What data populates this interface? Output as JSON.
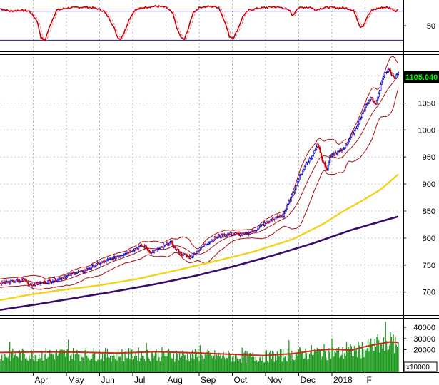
{
  "chart_data": {
    "type": "candlestick",
    "months": [
      "Apr",
      "May",
      "Jun",
      "Jul",
      "Aug",
      "Sep",
      "Oct",
      "Nov",
      "Dec",
      "2018",
      "F"
    ],
    "last_price_label": "1105.040",
    "volume_unit_label": "x10000",
    "colors": {
      "up_candle": "#0000cc",
      "down_candle": "#cc0000",
      "bollinger": "#aa1111",
      "ma_yellow": "#f2d21b",
      "ma_purple": "#3b0a6e",
      "volume": "#1f9a1f",
      "volume_ma": "#cc2a1a",
      "indicator_line": "#cc0000",
      "price_badge_bg": "#000000",
      "price_badge_text": "#00ff00"
    },
    "panels": [
      {
        "name": "indicator",
        "yticks": [
          50
        ],
        "ylim": [
          0,
          100
        ],
        "hlines": [
          80,
          20
        ],
        "keypoints": [
          [
            0,
            85
          ],
          [
            10,
            80
          ],
          [
            20,
            82
          ],
          [
            30,
            80
          ],
          [
            38,
            60
          ],
          [
            42,
            25
          ],
          [
            46,
            20
          ],
          [
            52,
            55
          ],
          [
            58,
            82
          ],
          [
            68,
            86
          ],
          [
            80,
            88
          ],
          [
            90,
            88
          ],
          [
            100,
            85
          ],
          [
            106,
            80
          ],
          [
            112,
            65
          ],
          [
            117,
            45
          ],
          [
            120,
            28
          ],
          [
            123,
            22
          ],
          [
            127,
            35
          ],
          [
            132,
            62
          ],
          [
            138,
            82
          ],
          [
            148,
            88
          ],
          [
            160,
            90
          ],
          [
            170,
            88
          ],
          [
            177,
            75
          ],
          [
            182,
            40
          ],
          [
            186,
            24
          ],
          [
            189,
            22
          ],
          [
            193,
            45
          ],
          [
            198,
            78
          ],
          [
            205,
            88
          ],
          [
            215,
            90
          ],
          [
            224,
            88
          ],
          [
            230,
            60
          ],
          [
            235,
            28
          ],
          [
            239,
            25
          ],
          [
            243,
            40
          ],
          [
            249,
            70
          ],
          [
            255,
            82
          ],
          [
            262,
            85
          ],
          [
            270,
            87
          ],
          [
            280,
            89
          ],
          [
            290,
            87
          ],
          [
            297,
            80
          ],
          [
            300,
            70
          ],
          [
            304,
            85
          ],
          [
            310,
            88
          ],
          [
            318,
            88
          ],
          [
            323,
            82
          ],
          [
            327,
            85
          ],
          [
            335,
            88
          ],
          [
            345,
            87
          ],
          [
            355,
            86
          ],
          [
            362,
            82
          ],
          [
            366,
            62
          ],
          [
            369,
            48
          ],
          [
            372,
            50
          ],
          [
            376,
            68
          ],
          [
            381,
            82
          ],
          [
            388,
            86
          ],
          [
            395,
            88
          ],
          [
            400,
            86
          ],
          [
            405,
            80
          ],
          [
            408,
            84
          ]
        ]
      },
      {
        "name": "price",
        "yticks": [
          700,
          750,
          800,
          850,
          900,
          950,
          1000,
          1050,
          1100
        ],
        "ylim": [
          660,
          1135
        ],
        "keypoints": [
          [
            0,
            718
          ],
          [
            20,
            720
          ],
          [
            25,
            724
          ],
          [
            30,
            714
          ],
          [
            40,
            716
          ],
          [
            50,
            720
          ],
          [
            60,
            724
          ],
          [
            70,
            730
          ],
          [
            75,
            735
          ],
          [
            85,
            738
          ],
          [
            95,
            748
          ],
          [
            105,
            755
          ],
          [
            115,
            762
          ],
          [
            125,
            770
          ],
          [
            135,
            778
          ],
          [
            145,
            786
          ],
          [
            150,
            782
          ],
          [
            155,
            772
          ],
          [
            160,
            778
          ],
          [
            165,
            782
          ],
          [
            175,
            792
          ],
          [
            180,
            780
          ],
          [
            185,
            772
          ],
          [
            190,
            768
          ],
          [
            195,
            764
          ],
          [
            200,
            772
          ],
          [
            210,
            788
          ],
          [
            220,
            800
          ],
          [
            230,
            806
          ],
          [
            240,
            808
          ],
          [
            250,
            806
          ],
          [
            260,
            814
          ],
          [
            270,
            825
          ],
          [
            280,
            835
          ],
          [
            290,
            842
          ],
          [
            295,
            862
          ],
          [
            300,
            882
          ],
          [
            305,
            905
          ],
          [
            310,
            925
          ],
          [
            315,
            942
          ],
          [
            320,
            952
          ],
          [
            325,
            975
          ],
          [
            328,
            960
          ],
          [
            330,
            945
          ],
          [
            335,
            925
          ],
          [
            338,
            950
          ],
          [
            342,
            955
          ],
          [
            350,
            962
          ],
          [
            355,
            975
          ],
          [
            360,
            990
          ],
          [
            365,
            1005
          ],
          [
            370,
            1025
          ],
          [
            375,
            1045
          ],
          [
            380,
            1062
          ],
          [
            385,
            1045
          ],
          [
            388,
            1070
          ],
          [
            390,
            1082
          ],
          [
            394,
            1105
          ],
          [
            398,
            1112
          ],
          [
            402,
            1100
          ],
          [
            405,
            1098
          ],
          [
            408,
            1105
          ]
        ],
        "series": [
          {
            "key": "ma_purple",
            "keypoints": [
              [
                0,
                667
              ],
              [
                40,
                678
              ],
              [
                80,
                690
              ],
              [
                120,
                702
              ],
              [
                160,
                715
              ],
              [
                200,
                730
              ],
              [
                240,
                748
              ],
              [
                280,
                768
              ],
              [
                320,
                790
              ],
              [
                360,
                815
              ],
              [
                408,
                840
              ]
            ]
          },
          {
            "key": "ma_yellow",
            "keypoints": [
              [
                0,
                685
              ],
              [
                30,
                695
              ],
              [
                60,
                703
              ],
              [
                100,
                712
              ],
              [
                140,
                724
              ],
              [
                180,
                740
              ],
              [
                220,
                757
              ],
              [
                260,
                775
              ],
              [
                300,
                798
              ],
              [
                330,
                825
              ],
              [
                350,
                848
              ],
              [
                370,
                868
              ],
              [
                390,
                890
              ],
              [
                408,
                918
              ]
            ]
          }
        ]
      },
      {
        "name": "volume",
        "yticks": [
          10000,
          20000,
          30000,
          40000
        ],
        "ylim": [
          0,
          47000
        ],
        "keypoints": [
          [
            0,
            16000
          ],
          [
            40,
            17000
          ],
          [
            80,
            17500
          ],
          [
            120,
            16500
          ],
          [
            160,
            17500
          ],
          [
            200,
            16000
          ],
          [
            240,
            15000
          ],
          [
            260,
            14500
          ],
          [
            280,
            15500
          ],
          [
            300,
            17000
          ],
          [
            320,
            19000
          ],
          [
            340,
            19500
          ],
          [
            350,
            18000
          ],
          [
            370,
            22000
          ],
          [
            390,
            25000
          ],
          [
            408,
            26000
          ]
        ],
        "spikes": [
          [
            395,
            45000
          ],
          [
            400,
            36000
          ],
          [
            405,
            32000
          ],
          [
            387,
            34000
          ],
          [
            340,
            30000
          ],
          [
            296,
            28500
          ],
          [
            150,
            26000
          ],
          [
            70,
            29000
          ],
          [
            10,
            27000
          ],
          [
            205,
            24000
          ],
          [
            248,
            22000
          ],
          [
            355,
            27000
          ],
          [
            380,
            30000
          ]
        ],
        "ma_keypoints": [
          [
            0,
            17500
          ],
          [
            40,
            18000
          ],
          [
            80,
            17800
          ],
          [
            120,
            17000
          ],
          [
            160,
            18200
          ],
          [
            200,
            17200
          ],
          [
            240,
            15800
          ],
          [
            270,
            14800
          ],
          [
            300,
            16500
          ],
          [
            320,
            19000
          ],
          [
            340,
            20500
          ],
          [
            360,
            19500
          ],
          [
            375,
            23000
          ],
          [
            390,
            25500
          ],
          [
            400,
            27000
          ],
          [
            408,
            26500
          ]
        ]
      }
    ]
  }
}
